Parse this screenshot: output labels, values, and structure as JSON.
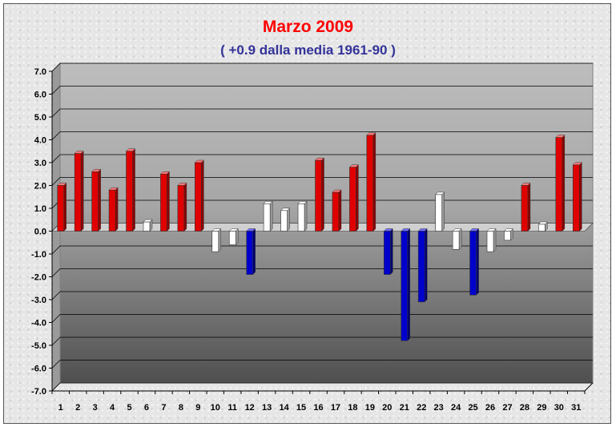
{
  "title": "Marzo 2009",
  "subtitle": "( +0.9 dalla media 1961-90 )",
  "colors": {
    "positive": "#e00000",
    "negative": "#0000cc",
    "near_zero": "#ffffff",
    "title": "#ff0000",
    "subtitle": "#333399"
  },
  "chart_data": {
    "type": "bar",
    "title": "Marzo 2009",
    "subtitle": "( +0.9 dalla media 1961-90 )",
    "xlabel": "",
    "ylabel": "",
    "ylim": [
      -7,
      7
    ],
    "y_ticks": [
      "7.0",
      "6.0",
      "5.0",
      "4.0",
      "3.0",
      "2.0",
      "1.0",
      "0.0",
      "-1.0",
      "-2.0",
      "-3.0",
      "-4.0",
      "-5.0",
      "-6.0",
      "-7.0"
    ],
    "grid": true,
    "categories": [
      "1",
      "2",
      "3",
      "4",
      "5",
      "6",
      "7",
      "8",
      "9",
      "10",
      "11",
      "12",
      "13",
      "14",
      "15",
      "16",
      "17",
      "18",
      "19",
      "20",
      "21",
      "22",
      "23",
      "24",
      "25",
      "26",
      "27",
      "28",
      "29",
      "30",
      "31"
    ],
    "values": [
      2.0,
      3.4,
      2.6,
      1.8,
      3.5,
      0.4,
      2.5,
      2.0,
      3.0,
      -0.9,
      -0.6,
      -1.9,
      1.2,
      0.9,
      1.2,
      3.1,
      1.7,
      2.8,
      4.2,
      -1.9,
      -4.8,
      -3.1,
      1.6,
      -0.8,
      -2.8,
      -0.9,
      -0.4,
      2.0,
      0.3,
      4.1,
      2.9
    ],
    "bar_colors": [
      "red",
      "red",
      "red",
      "red",
      "red",
      "white",
      "red",
      "red",
      "red",
      "white",
      "white",
      "blue",
      "white",
      "white",
      "white",
      "red",
      "red",
      "red",
      "red",
      "blue",
      "blue",
      "blue",
      "white",
      "white",
      "blue",
      "white",
      "white",
      "red",
      "white",
      "red",
      "red"
    ]
  }
}
